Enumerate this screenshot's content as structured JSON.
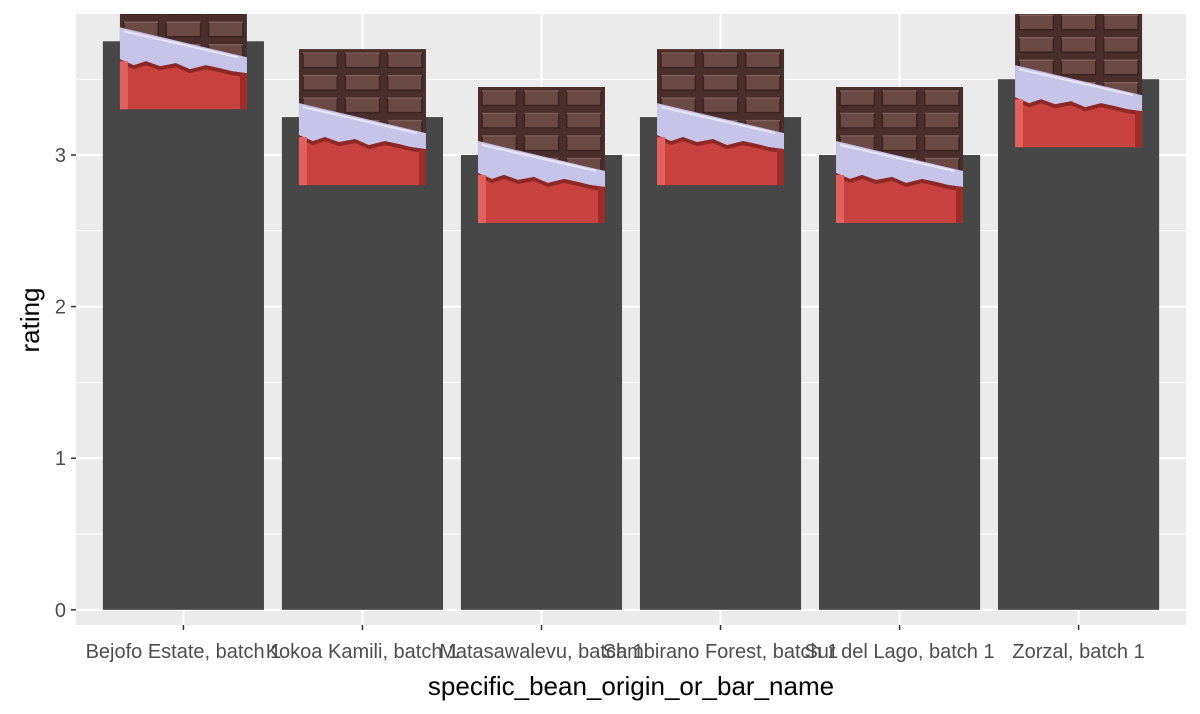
{
  "chart_data": {
    "type": "bar",
    "categories": [
      "Bejofo Estate, batch 1",
      "Kokoa Kamili, batch 1",
      "Matasawalevu, batch 1",
      "Sambirano Forest, batch 1",
      "Sur del Lago, batch 1",
      "Zorzal, batch 1"
    ],
    "values": [
      3.75,
      3.25,
      3.0,
      3.25,
      3.0,
      3.5
    ],
    "xlabel": "specific_bean_origin_or_bar_name",
    "ylabel": "rating",
    "ylim": [
      -0.1,
      3.93
    ],
    "yticks": [
      0,
      1,
      2,
      3
    ],
    "grid": true,
    "bar_color": "#474747",
    "panel_color": "#ebebeb",
    "grid_color": "#ffffff",
    "decoration": "chocolate-bar-icon"
  }
}
